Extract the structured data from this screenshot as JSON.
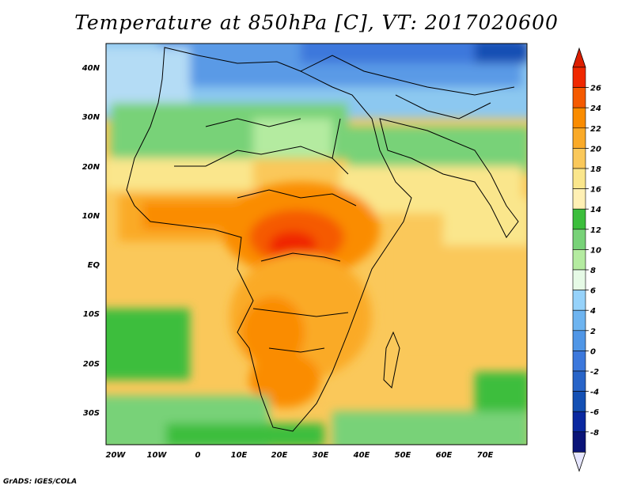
{
  "title": "Temperature at 850hPa [C], VT: 2017020600",
  "footer": "GrADS: IGES/COLA",
  "axes": {
    "lon_labels": [
      "20W",
      "10W",
      "0",
      "10E",
      "20E",
      "30E",
      "40E",
      "50E",
      "60E",
      "70E"
    ],
    "lat_labels": [
      "40N",
      "30N",
      "20N",
      "10N",
      "EQ",
      "10S",
      "20S",
      "30S"
    ]
  },
  "colorbar": {
    "labels": [
      "26",
      "24",
      "22",
      "20",
      "18",
      "16",
      "14",
      "12",
      "10",
      "8",
      "6",
      "4",
      "2",
      "0",
      "-2",
      "-4",
      "-6",
      "-8"
    ],
    "colors": [
      "#f02800",
      "#f55a00",
      "#fa8c00",
      "#faaa28",
      "#fac85a",
      "#fae68c",
      "#fff0b4",
      "#3cbe3c",
      "#78d278",
      "#b4eba0",
      "#e6fae6",
      "#96d2fa",
      "#6eb4f0",
      "#5096e6",
      "#3c78dc",
      "#2864c8",
      "#1450b4",
      "#0a28a0",
      "#0a1478"
    ],
    "top_arrow_color": "#dc1e00",
    "bottom_arrow_color": "#e6e6ff"
  }
}
